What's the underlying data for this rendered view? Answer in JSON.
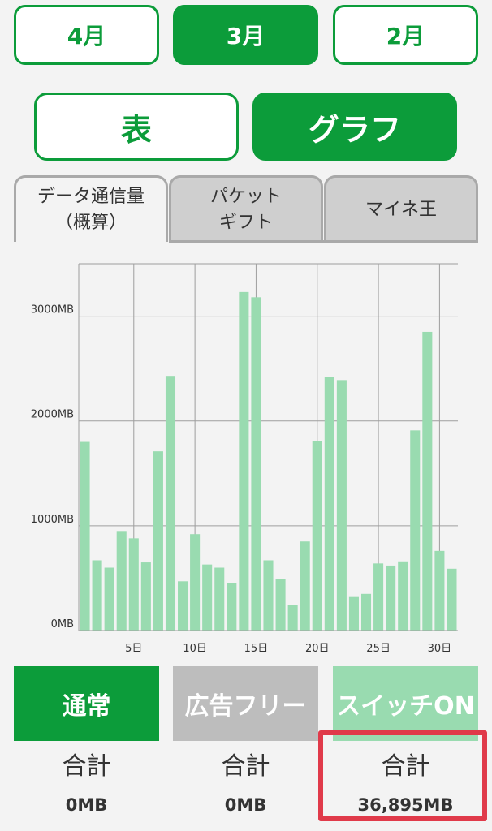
{
  "months": [
    {
      "label": "4月",
      "active": false
    },
    {
      "label": "3月",
      "active": true
    },
    {
      "label": "2月",
      "active": false
    }
  ],
  "view_toggle": [
    {
      "label": "表",
      "active": false
    },
    {
      "label": "グラフ",
      "active": true
    }
  ],
  "tabs": [
    {
      "line1": "データ通信量",
      "line2": "（概算）",
      "active": true
    },
    {
      "line1": "パケット",
      "line2": "ギフト",
      "active": false
    },
    {
      "line1": "マイネ王",
      "line2": "",
      "active": false
    }
  ],
  "chart_data": {
    "type": "bar",
    "x": [
      1,
      2,
      3,
      4,
      5,
      6,
      7,
      8,
      9,
      10,
      11,
      12,
      13,
      14,
      15,
      16,
      17,
      18,
      19,
      20,
      21,
      22,
      23,
      24,
      25,
      26,
      27,
      28,
      29,
      30,
      31
    ],
    "values": [
      1800,
      670,
      600,
      950,
      880,
      650,
      1710,
      2430,
      470,
      920,
      630,
      600,
      450,
      3230,
      3180,
      670,
      490,
      240,
      850,
      1810,
      2420,
      2390,
      320,
      350,
      640,
      620,
      660,
      1910,
      2850,
      760,
      590
    ],
    "ylim": [
      0,
      3500
    ],
    "yticks": [
      0,
      1000,
      2000,
      3000
    ],
    "ytick_labels": [
      "0MB",
      "1000MB",
      "2000MB",
      "3000MB"
    ],
    "xticks": [
      5,
      10,
      15,
      20,
      25,
      30
    ],
    "xtick_labels": [
      "5日",
      "10日",
      "15日",
      "20日",
      "25日",
      "30日"
    ],
    "bar_color": "#99dbb0",
    "grid": true
  },
  "categories": [
    {
      "label": "通常",
      "color": "#0c9c3a",
      "total_label": "合計",
      "total": "0MB"
    },
    {
      "label": "広告フリー",
      "color": "#bdbdbd",
      "total_label": "合計",
      "total": "0MB"
    },
    {
      "label": "スイッチON",
      "color": "#99dbb0",
      "total_label": "合計",
      "total": "36,895MB"
    }
  ]
}
